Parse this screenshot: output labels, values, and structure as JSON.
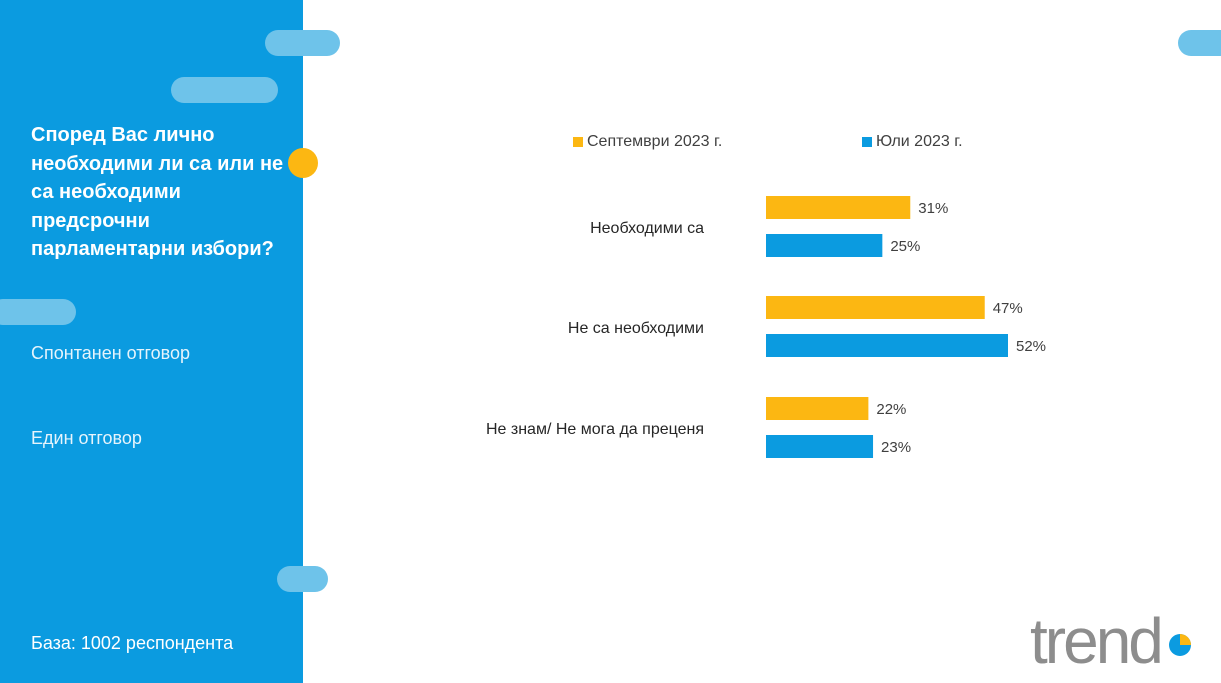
{
  "question": {
    "lines": [
      "Според Вас лично",
      "необходими ли са или не",
      "са необходими",
      "предсрочни",
      "парламентарни избори?"
    ]
  },
  "notes": {
    "spontaneous": "Спонтанен отговор",
    "single": "Един отговор"
  },
  "base": {
    "label": "База:  1002 респондента"
  },
  "colors": {
    "sidebar": "#0b9be0",
    "september": "#fcb712",
    "july": "#0b9be0",
    "pill": "#6ec3ea"
  },
  "chart_data": {
    "type": "bar",
    "orientation": "horizontal",
    "categories": [
      "Необходими са",
      "Не са необходими",
      "Не знам/ Не мога да преценя"
    ],
    "series": [
      {
        "name": "Септември 2023 г.",
        "values": [
          31,
          47,
          22
        ],
        "labels": [
          "31%",
          "47%",
          "22%"
        ],
        "color": "#fcb712"
      },
      {
        "name": "Юли 2023 г.",
        "values": [
          25,
          52,
          23
        ],
        "labels": [
          "25%",
          "52%",
          "23%"
        ],
        "color": "#0b9be0"
      }
    ],
    "unit": "%",
    "xlim": [
      0,
      100
    ],
    "legend": "top",
    "grid": false
  },
  "logo": {
    "text": "trend",
    "icon": "pie-chart-icon"
  }
}
